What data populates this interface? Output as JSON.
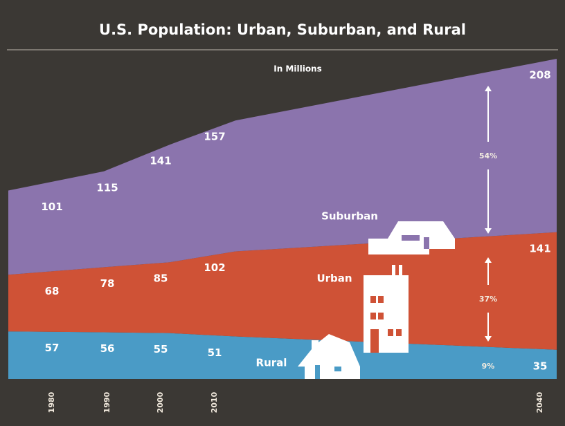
{
  "chart_data": {
    "type": "stacked_area",
    "title": "U.S. Population: Urban, Suburban, and Rural",
    "subtitle": "In Millions",
    "categories": [
      "1980",
      "1990",
      "2000",
      "2010",
      "2040"
    ],
    "series": [
      {
        "name": "Rural",
        "color": "#4a9bc6",
        "values": [
          57,
          56,
          55,
          51,
          35
        ]
      },
      {
        "name": "Urban",
        "color": "#cf5236",
        "values": [
          68,
          78,
          85,
          102,
          141
        ]
      },
      {
        "name": "Suburban",
        "color": "#8b74ad",
        "values": [
          101,
          115,
          141,
          157,
          208
        ]
      }
    ],
    "annotations": [
      {
        "text": "9%"
      },
      {
        "text": "37%"
      },
      {
        "text": "54%"
      }
    ],
    "ylim": [
      0,
      384
    ]
  }
}
